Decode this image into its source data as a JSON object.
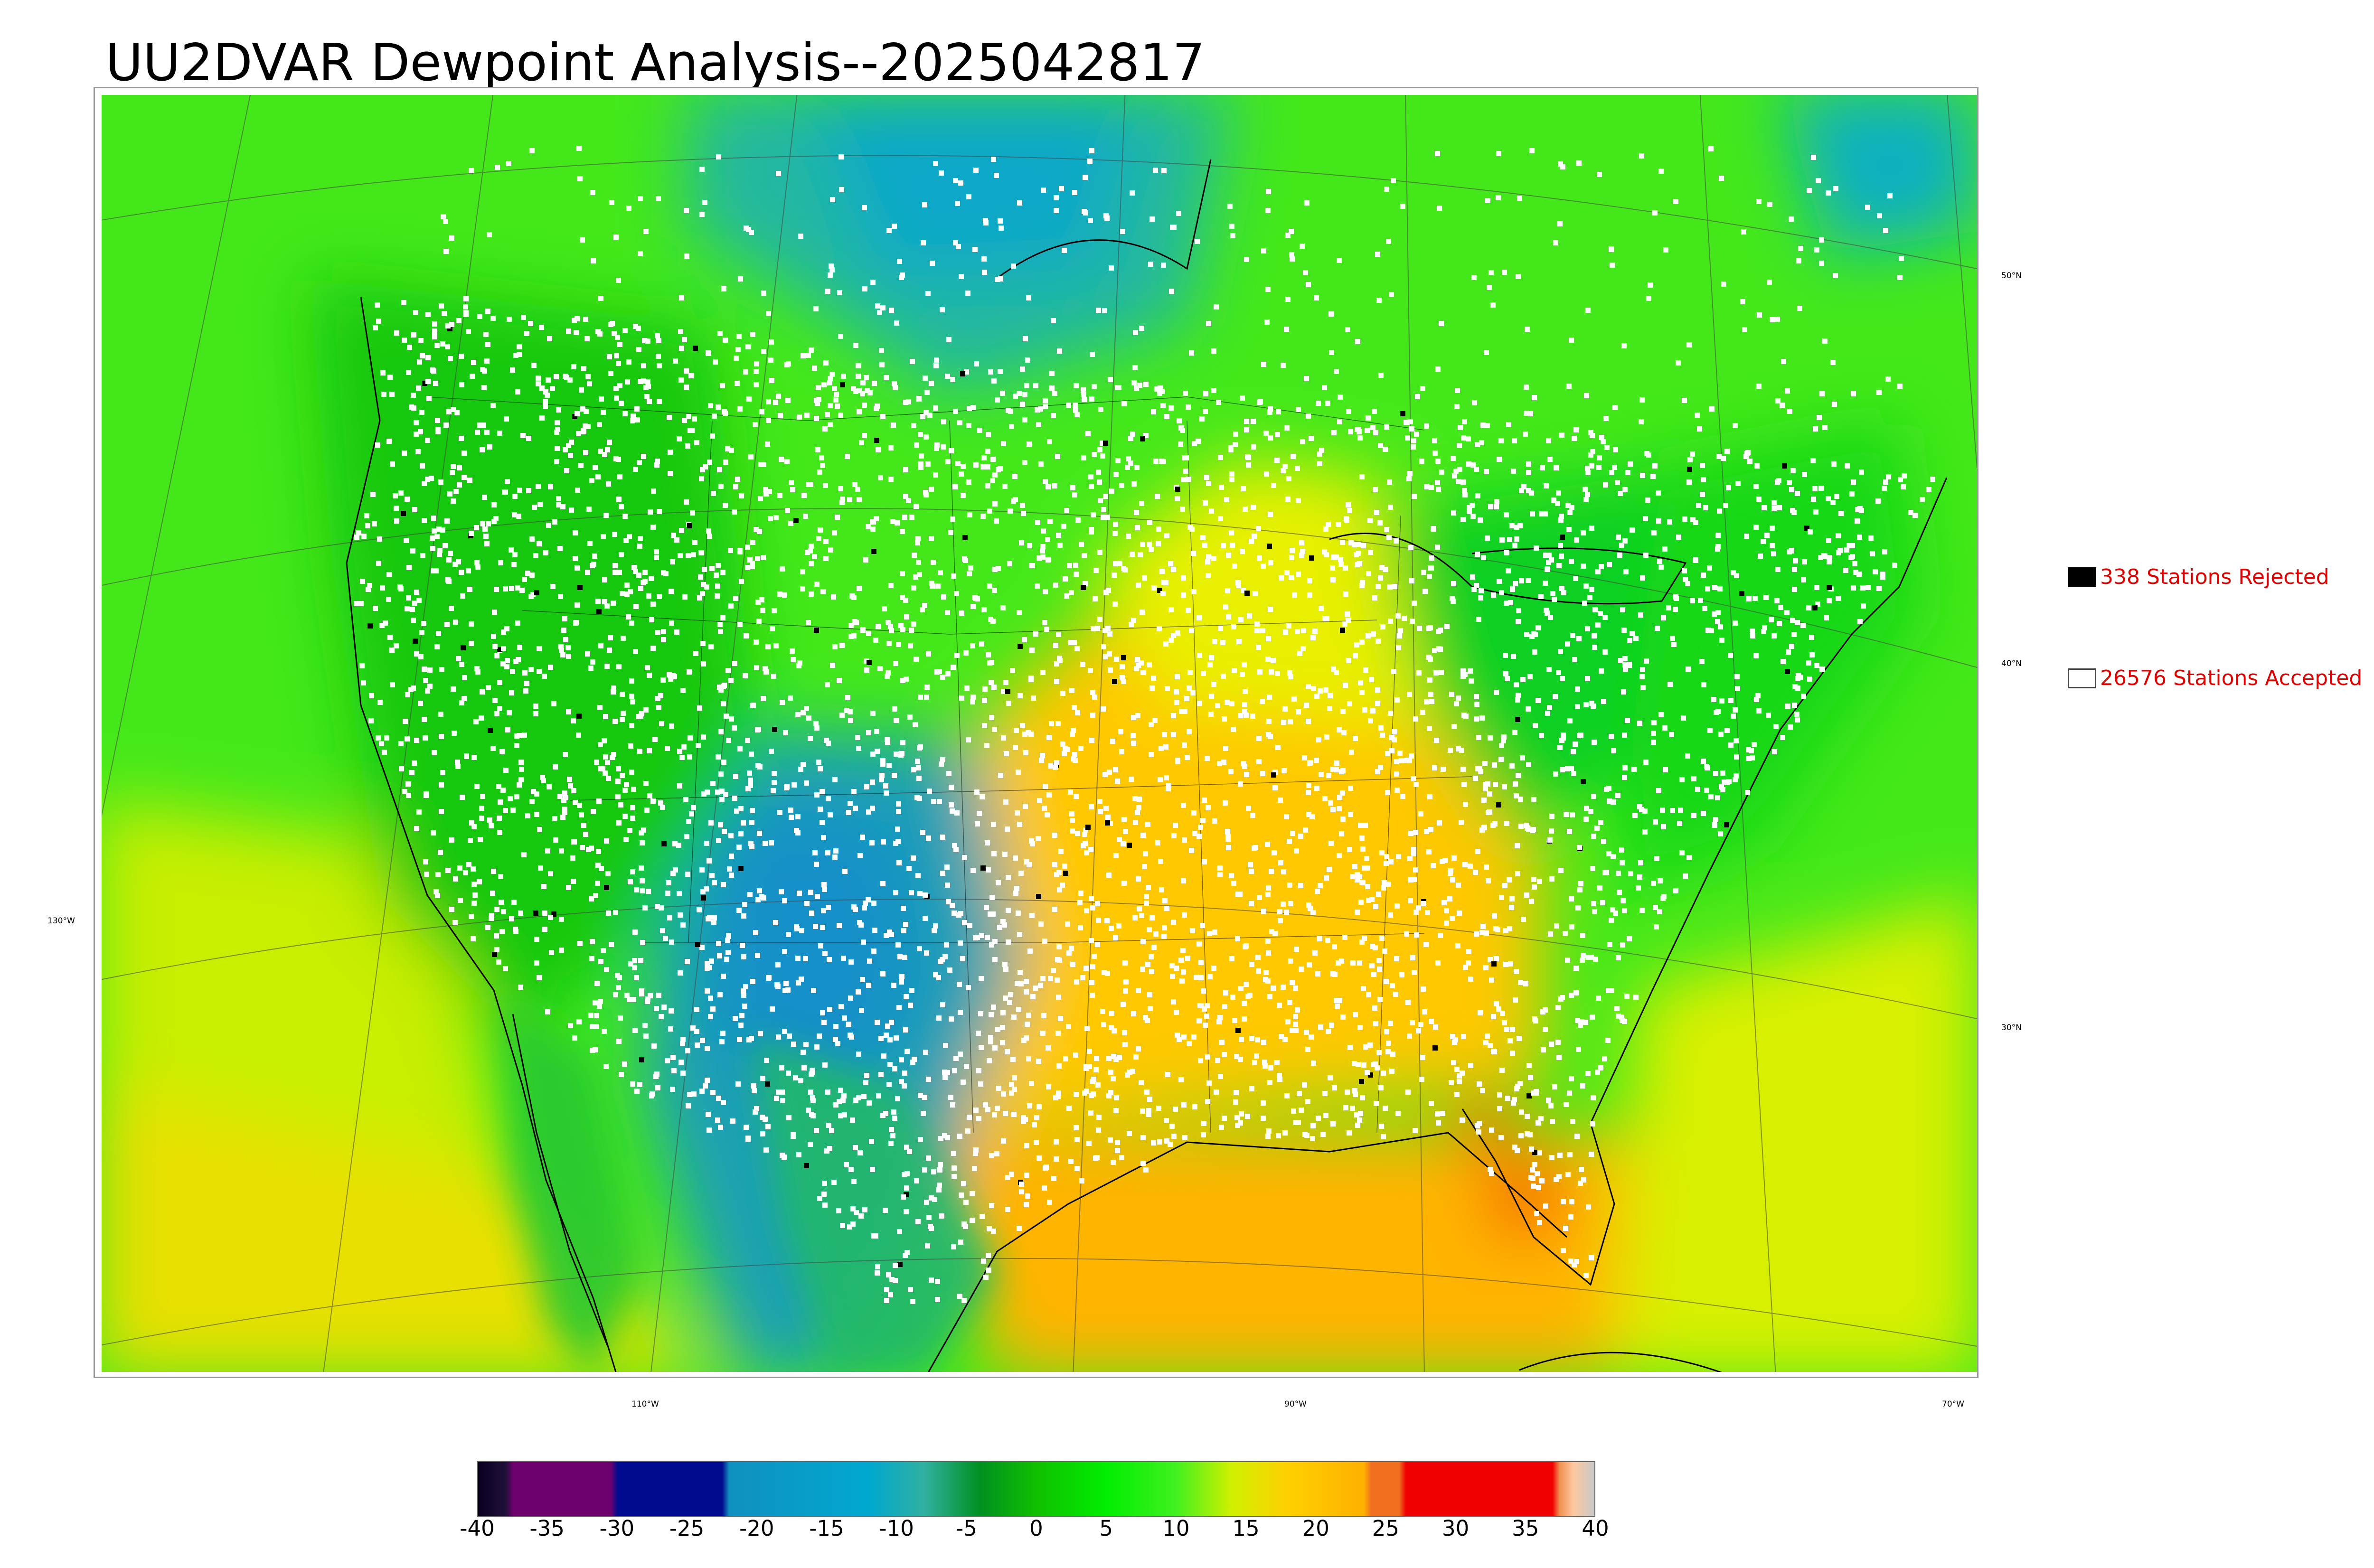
{
  "title": "UU2DVAR Dewpoint Analysis--2025042817",
  "legend": {
    "rejected": {
      "count": "338",
      "label": "338 Stations Rejected",
      "swatch_color": "#000000",
      "text_color": "#e00000"
    },
    "accepted": {
      "count": "26576",
      "label": "26576 Stations Accepted",
      "swatch_color": "#ffffff",
      "text_color": "#e00000"
    }
  },
  "graticule": {
    "lat_labels": [
      "50°N",
      "40°N",
      "30°N"
    ],
    "lon_labels": [
      "130°W",
      "110°W",
      "90°W",
      "70°W"
    ]
  },
  "colorbar": {
    "tick_labels": [
      "-40",
      "-35",
      "-30",
      "-25",
      "-20",
      "-15",
      "-10",
      "-5",
      "0",
      "5",
      "10",
      "15",
      "20",
      "25",
      "30",
      "35",
      "40"
    ],
    "range": [
      -40,
      40
    ],
    "stops": [
      {
        "value": -40,
        "color": "#0a0020"
      },
      {
        "value": -38,
        "color": "#20103a"
      },
      {
        "value": -37.5,
        "color": "#6e006e"
      },
      {
        "value": -30.5,
        "color": "#6e006e"
      },
      {
        "value": -30,
        "color": "#000c90"
      },
      {
        "value": -22.5,
        "color": "#000c90"
      },
      {
        "value": -22,
        "color": "#1090c0"
      },
      {
        "value": -12,
        "color": "#00a8d0"
      },
      {
        "value": -8,
        "color": "#30b0a0"
      },
      {
        "value": -4,
        "color": "#009020"
      },
      {
        "value": 0,
        "color": "#10c000"
      },
      {
        "value": 5,
        "color": "#00ee00"
      },
      {
        "value": 10,
        "color": "#40f020"
      },
      {
        "value": 14,
        "color": "#d0f000"
      },
      {
        "value": 18,
        "color": "#ffd000"
      },
      {
        "value": 23.5,
        "color": "#ffb000"
      },
      {
        "value": 24,
        "color": "#f07020"
      },
      {
        "value": 26,
        "color": "#f07020"
      },
      {
        "value": 26.5,
        "color": "#f00000"
      },
      {
        "value": 37,
        "color": "#f00000"
      },
      {
        "value": 37.5,
        "color": "#f09050"
      },
      {
        "value": 38.5,
        "color": "#ffc8a0"
      },
      {
        "value": 40,
        "color": "#c8c8c8"
      }
    ]
  },
  "colors": {
    "ocean_west": "#70ee20",
    "ocean_gulf": "#ffb000",
    "atlantic": "#50ee20",
    "great_plains_dry": "#1ca0b4",
    "canada_north": "#10c000",
    "station_accepted": "#ffffff",
    "station_rejected": "#000000",
    "rejected_text": "#e00000"
  }
}
